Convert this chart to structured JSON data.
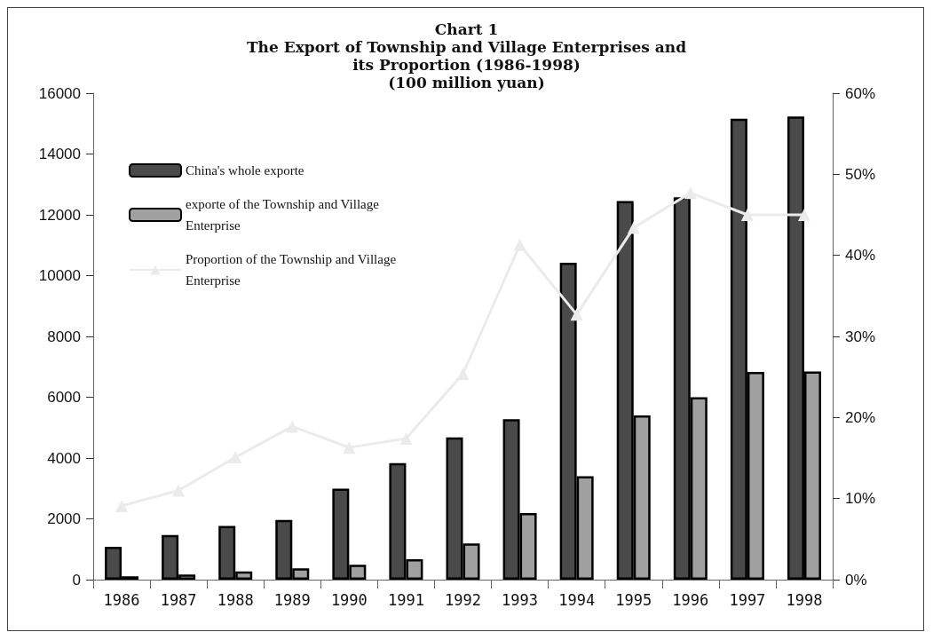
{
  "chart_data": {
    "type": "bar",
    "title": "Chart 1\nThe Export of Township and Village Enterprises and\nits Proportion (1986-1998)\n(100 million yuan)",
    "categories": [
      "1986",
      "1987",
      "1988",
      "1989",
      "1990",
      "1991",
      "1992",
      "1993",
      "1994",
      "1995",
      "1996",
      "1997",
      "1998"
    ],
    "series": [
      {
        "name": "China's whole exporte",
        "color": "#4a4a4a",
        "values": [
          1080,
          1470,
          1770,
          1960,
          2990,
          3830,
          4680,
          5280,
          10420,
          12450,
          12580,
          15160,
          15230
        ]
      },
      {
        "name": "exporte of the Township and Village Enterprise",
        "color": "#a0a0a0",
        "values": [
          110,
          170,
          270,
          370,
          490,
          670,
          1190,
          2190,
          3400,
          5400,
          6000,
          6830,
          6850
        ]
      },
      {
        "name": "Proportion of the Township and Village Enterprise",
        "type": "line",
        "axis": "y2",
        "color": "#ebebeb",
        "marker": "triangle",
        "values": [
          9.1,
          11.0,
          15.1,
          18.9,
          16.3,
          17.4,
          25.4,
          41.3,
          32.7,
          43.4,
          47.7,
          45.0,
          45.0
        ]
      }
    ],
    "ylim": [
      0,
      16000
    ],
    "yticks": [
      0,
      2000,
      4000,
      6000,
      8000,
      10000,
      12000,
      14000,
      16000
    ],
    "y2lim": [
      0,
      60
    ],
    "y2ticks": [
      {
        "value": 0,
        "label": "0%"
      },
      {
        "value": 10,
        "label": "10%"
      },
      {
        "value": 20,
        "label": "20%"
      },
      {
        "value": 30,
        "label": "30%"
      },
      {
        "value": 40,
        "label": "40%"
      },
      {
        "value": 50,
        "label": "50%"
      },
      {
        "value": 60,
        "label": "60%"
      }
    ],
    "grid": false,
    "legend": "top left"
  }
}
